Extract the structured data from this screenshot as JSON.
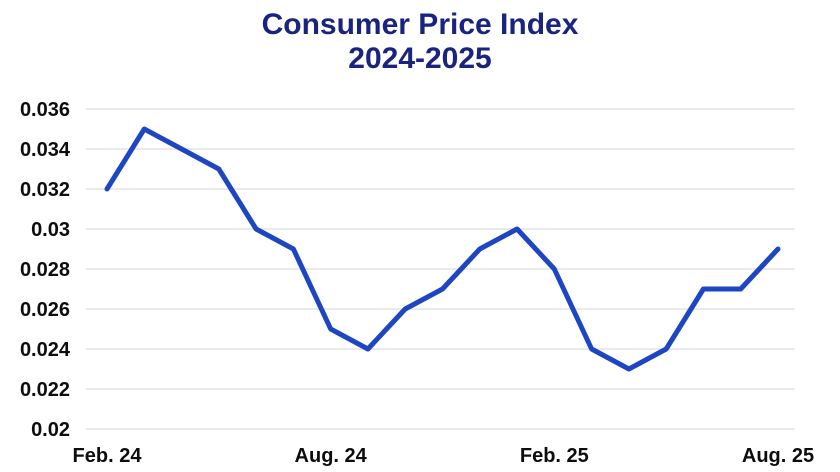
{
  "page": {
    "background_color": "#ffffff"
  },
  "header": {
    "title": "Consumer Price Index",
    "subtitle": "2024-2025",
    "title_color": "#1a237e"
  },
  "chart_data": {
    "type": "line",
    "title": "Consumer Price Index",
    "subtitle": "2024-2025",
    "x": [
      0,
      1,
      2,
      3,
      4,
      5,
      6,
      7,
      8,
      9,
      10,
      11,
      12,
      13,
      14,
      15,
      16,
      17,
      18
    ],
    "values": [
      0.032,
      0.035,
      0.034,
      0.033,
      0.03,
      0.029,
      0.025,
      0.024,
      0.026,
      0.027,
      0.029,
      0.03,
      0.028,
      0.024,
      0.023,
      0.024,
      0.027,
      0.027,
      0.029
    ],
    "x_tick_labels": [
      {
        "index": 0,
        "label": "Feb. 24"
      },
      {
        "index": 6,
        "label": "Aug. 24"
      },
      {
        "index": 12,
        "label": "Feb. 25"
      },
      {
        "index": 18,
        "label": "Aug. 25"
      }
    ],
    "y_ticks": [
      {
        "value": 0.036,
        "label": "0.036"
      },
      {
        "value": 0.034,
        "label": "0.034"
      },
      {
        "value": 0.032,
        "label": "0.032"
      },
      {
        "value": 0.03,
        "label": "0.03"
      },
      {
        "value": 0.028,
        "label": "0.028"
      },
      {
        "value": 0.026,
        "label": "0.026"
      },
      {
        "value": 0.024,
        "label": "0.024"
      },
      {
        "value": 0.022,
        "label": "0.022"
      },
      {
        "value": 0.02,
        "label": "0.02"
      }
    ],
    "ylim": [
      0.02,
      0.036
    ],
    "xlabel": "",
    "ylabel": "",
    "grid": "horizontal",
    "legend": "none",
    "colors": {
      "line": "#1e46c3",
      "grid": "#e4e4e6",
      "tick_text": "#0d0d0d"
    }
  }
}
